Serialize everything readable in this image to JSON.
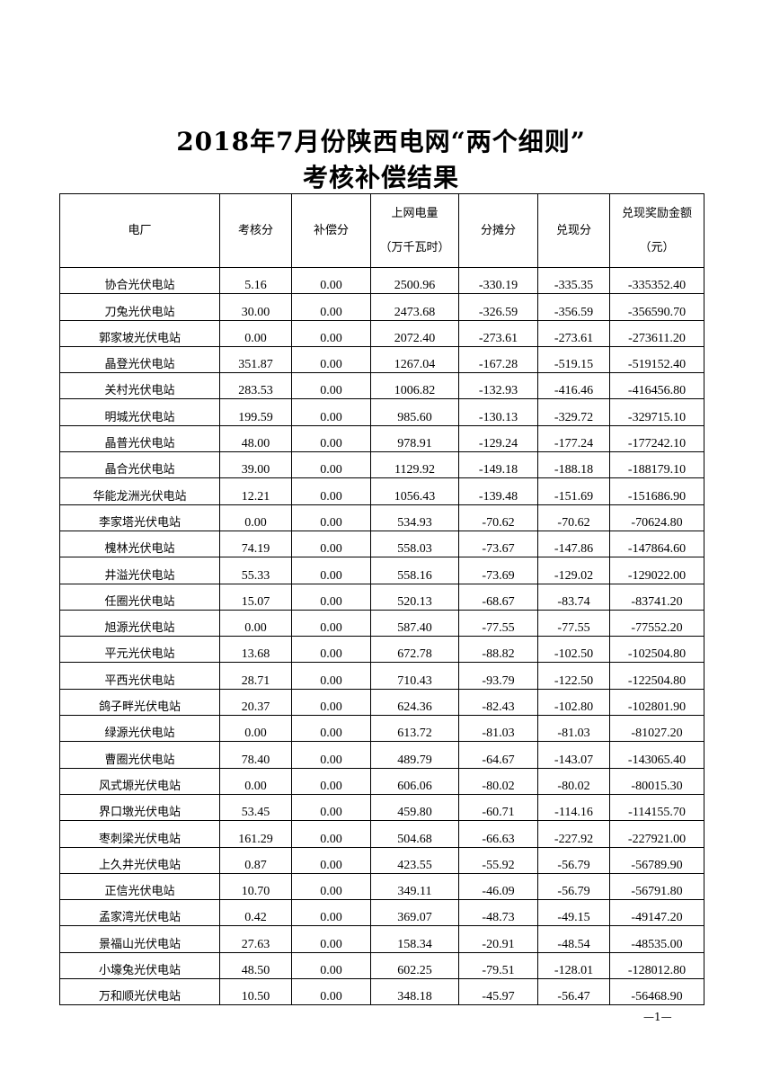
{
  "title_line1": "2018年7月份陕西电网“两个细则”",
  "title_line2": "考核补偿结果",
  "headers": {
    "plant": "电厂",
    "assessment": "考核分",
    "compensation": "补偿分",
    "grid_energy": "上网电量",
    "grid_energy_unit": "（万千瓦时）",
    "allocation": "分摊分",
    "redeem": "兑现分",
    "reward_amount": "兑现奖励金额",
    "reward_unit": "（元）"
  },
  "rows": [
    [
      "协合光伏电站",
      "5.16",
      "0.00",
      "2500.96",
      "-330.19",
      "-335.35",
      "-335352.40"
    ],
    [
      "刀兔光伏电站",
      "30.00",
      "0.00",
      "2473.68",
      "-326.59",
      "-356.59",
      "-356590.70"
    ],
    [
      "郭家坡光伏电站",
      "0.00",
      "0.00",
      "2072.40",
      "-273.61",
      "-273.61",
      "-273611.20"
    ],
    [
      "晶登光伏电站",
      "351.87",
      "0.00",
      "1267.04",
      "-167.28",
      "-519.15",
      "-519152.40"
    ],
    [
      "关村光伏电站",
      "283.53",
      "0.00",
      "1006.82",
      "-132.93",
      "-416.46",
      "-416456.80"
    ],
    [
      "明城光伏电站",
      "199.59",
      "0.00",
      "985.60",
      "-130.13",
      "-329.72",
      "-329715.10"
    ],
    [
      "晶普光伏电站",
      "48.00",
      "0.00",
      "978.91",
      "-129.24",
      "-177.24",
      "-177242.10"
    ],
    [
      "晶合光伏电站",
      "39.00",
      "0.00",
      "1129.92",
      "-149.18",
      "-188.18",
      "-188179.10"
    ],
    [
      "华能龙洲光伏电站",
      "12.21",
      "0.00",
      "1056.43",
      "-139.48",
      "-151.69",
      "-151686.90"
    ],
    [
      "李家塔光伏电站",
      "0.00",
      "0.00",
      "534.93",
      "-70.62",
      "-70.62",
      "-70624.80"
    ],
    [
      "槐林光伏电站",
      "74.19",
      "0.00",
      "558.03",
      "-73.67",
      "-147.86",
      "-147864.60"
    ],
    [
      "井溢光伏电站",
      "55.33",
      "0.00",
      "558.16",
      "-73.69",
      "-129.02",
      "-129022.00"
    ],
    [
      "任圈光伏电站",
      "15.07",
      "0.00",
      "520.13",
      "-68.67",
      "-83.74",
      "-83741.20"
    ],
    [
      "旭源光伏电站",
      "0.00",
      "0.00",
      "587.40",
      "-77.55",
      "-77.55",
      "-77552.20"
    ],
    [
      "平元光伏电站",
      "13.68",
      "0.00",
      "672.78",
      "-88.82",
      "-102.50",
      "-102504.80"
    ],
    [
      "平西光伏电站",
      "28.71",
      "0.00",
      "710.43",
      "-93.79",
      "-122.50",
      "-122504.80"
    ],
    [
      "鸽子畔光伏电站",
      "20.37",
      "0.00",
      "624.36",
      "-82.43",
      "-102.80",
      "-102801.90"
    ],
    [
      "绿源光伏电站",
      "0.00",
      "0.00",
      "613.72",
      "-81.03",
      "-81.03",
      "-81027.20"
    ],
    [
      "曹圈光伏电站",
      "78.40",
      "0.00",
      "489.79",
      "-64.67",
      "-143.07",
      "-143065.40"
    ],
    [
      "风式塬光伏电站",
      "0.00",
      "0.00",
      "606.06",
      "-80.02",
      "-80.02",
      "-80015.30"
    ],
    [
      "界口墩光伏电站",
      "53.45",
      "0.00",
      "459.80",
      "-60.71",
      "-114.16",
      "-114155.70"
    ],
    [
      "枣刺梁光伏电站",
      "161.29",
      "0.00",
      "504.68",
      "-66.63",
      "-227.92",
      "-227921.00"
    ],
    [
      "上久井光伏电站",
      "0.87",
      "0.00",
      "423.55",
      "-55.92",
      "-56.79",
      "-56789.90"
    ],
    [
      "正信光伏电站",
      "10.70",
      "0.00",
      "349.11",
      "-46.09",
      "-56.79",
      "-56791.80"
    ],
    [
      "孟家湾光伏电站",
      "0.42",
      "0.00",
      "369.07",
      "-48.73",
      "-49.15",
      "-49147.20"
    ],
    [
      "景福山光伏电站",
      "27.63",
      "0.00",
      "158.34",
      "-20.91",
      "-48.54",
      "-48535.00"
    ],
    [
      "小壕兔光伏电站",
      "48.50",
      "0.00",
      "602.25",
      "-79.51",
      "-128.01",
      "-128012.80"
    ],
    [
      "万和顺光伏电站",
      "10.50",
      "0.00",
      "348.18",
      "-45.97",
      "-56.47",
      "-56468.90"
    ]
  ],
  "page_number": "—1—"
}
